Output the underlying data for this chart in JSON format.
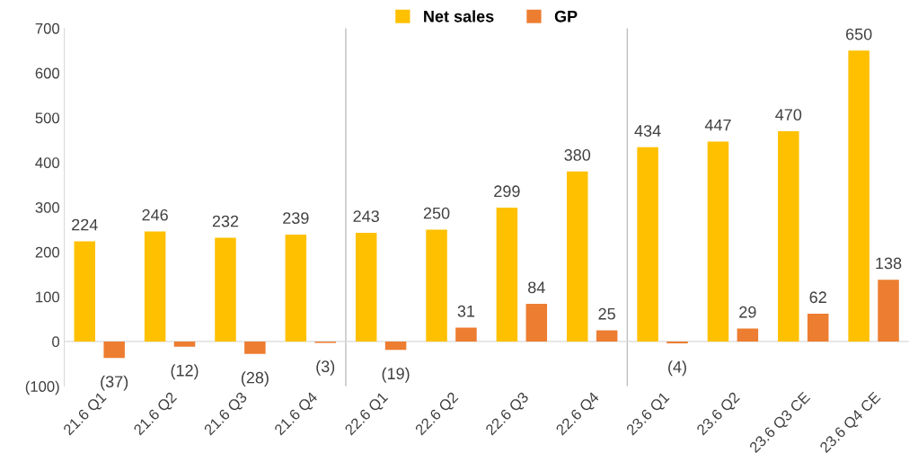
{
  "chart_data": {
    "type": "bar",
    "categories": [
      "21.6 Q1",
      "21.6 Q2",
      "21.6 Q3",
      "21.6 Q4",
      "22.6 Q1",
      "22.6 Q2",
      "22.6 Q3",
      "22.6 Q4",
      "23.6 Q1",
      "23.6 Q2",
      "23.6 Q3 CE",
      "23.6 Q4 CE"
    ],
    "series": [
      {
        "name": "Net sales",
        "color": "#ffc000",
        "values": [
          224,
          246,
          232,
          239,
          243,
          250,
          299,
          380,
          434,
          447,
          470,
          650
        ],
        "value_labels": [
          "224",
          "246",
          "232",
          "239",
          "243",
          "250",
          "299",
          "380",
          "434",
          "447",
          "470",
          "650"
        ]
      },
      {
        "name": "GP",
        "color": "#ed7d31",
        "values": [
          -37,
          -12,
          -28,
          -3,
          -19,
          31,
          84,
          25,
          -4,
          29,
          62,
          138
        ],
        "value_labels": [
          "(37)",
          "(12)",
          "(28)",
          "(3)",
          "(19)",
          "31",
          "84",
          "25",
          "(4)",
          "29",
          "62",
          "138"
        ]
      }
    ],
    "ylim": [
      -100,
      700
    ],
    "yticks": [
      {
        "value": -100,
        "label": "(100)"
      },
      0,
      100,
      200,
      300,
      400,
      500,
      600,
      700
    ],
    "grid": false,
    "legend": "top"
  }
}
